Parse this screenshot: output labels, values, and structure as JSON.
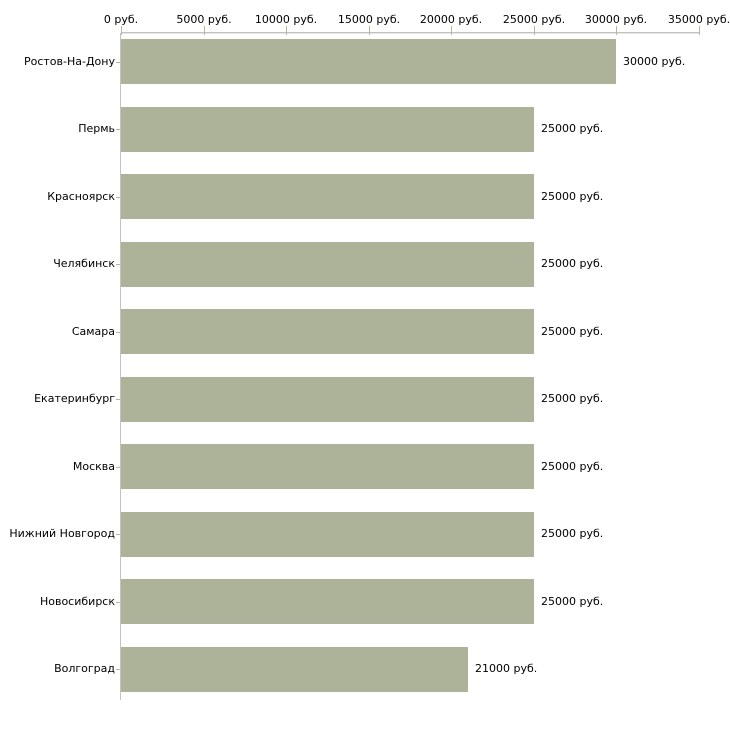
{
  "chart_data": {
    "type": "bar",
    "orientation": "horizontal",
    "title": "",
    "legend": "none",
    "grid": "off",
    "bar_color": "#acb399",
    "categories": [
      "Ростов-На-Дону",
      "Пермь",
      "Красноярск",
      "Челябинск",
      "Самара",
      "Екатеринбург",
      "Москва",
      "Нижний Новгород",
      "Новосибирск",
      "Волгоград"
    ],
    "values": [
      30000,
      25000,
      25000,
      25000,
      25000,
      25000,
      25000,
      25000,
      25000,
      21000
    ],
    "value_labels": [
      "30000 руб.",
      "25000 руб.",
      "25000 руб.",
      "25000 руб.",
      "25000 руб.",
      "25000 руб.",
      "25000 руб.",
      "25000 руб.",
      "25000 руб.",
      "21000 руб."
    ],
    "x_axis": {
      "position": "top",
      "unit": "руб.",
      "min": 0,
      "max": 35000,
      "ticks": [
        0,
        5000,
        10000,
        15000,
        20000,
        25000,
        30000,
        35000
      ],
      "tick_labels": [
        "0 руб.",
        "5000 руб.",
        "10000 руб.",
        "15000 руб.",
        "20000 руб.",
        "25000 руб.",
        "30000 руб.",
        "35000 руб."
      ]
    },
    "colors": {
      "bar": "#acb399",
      "axis_line": "#c2c2c2",
      "tick": "#b6b69e",
      "text": "#000000",
      "background": "#ffffff"
    }
  }
}
